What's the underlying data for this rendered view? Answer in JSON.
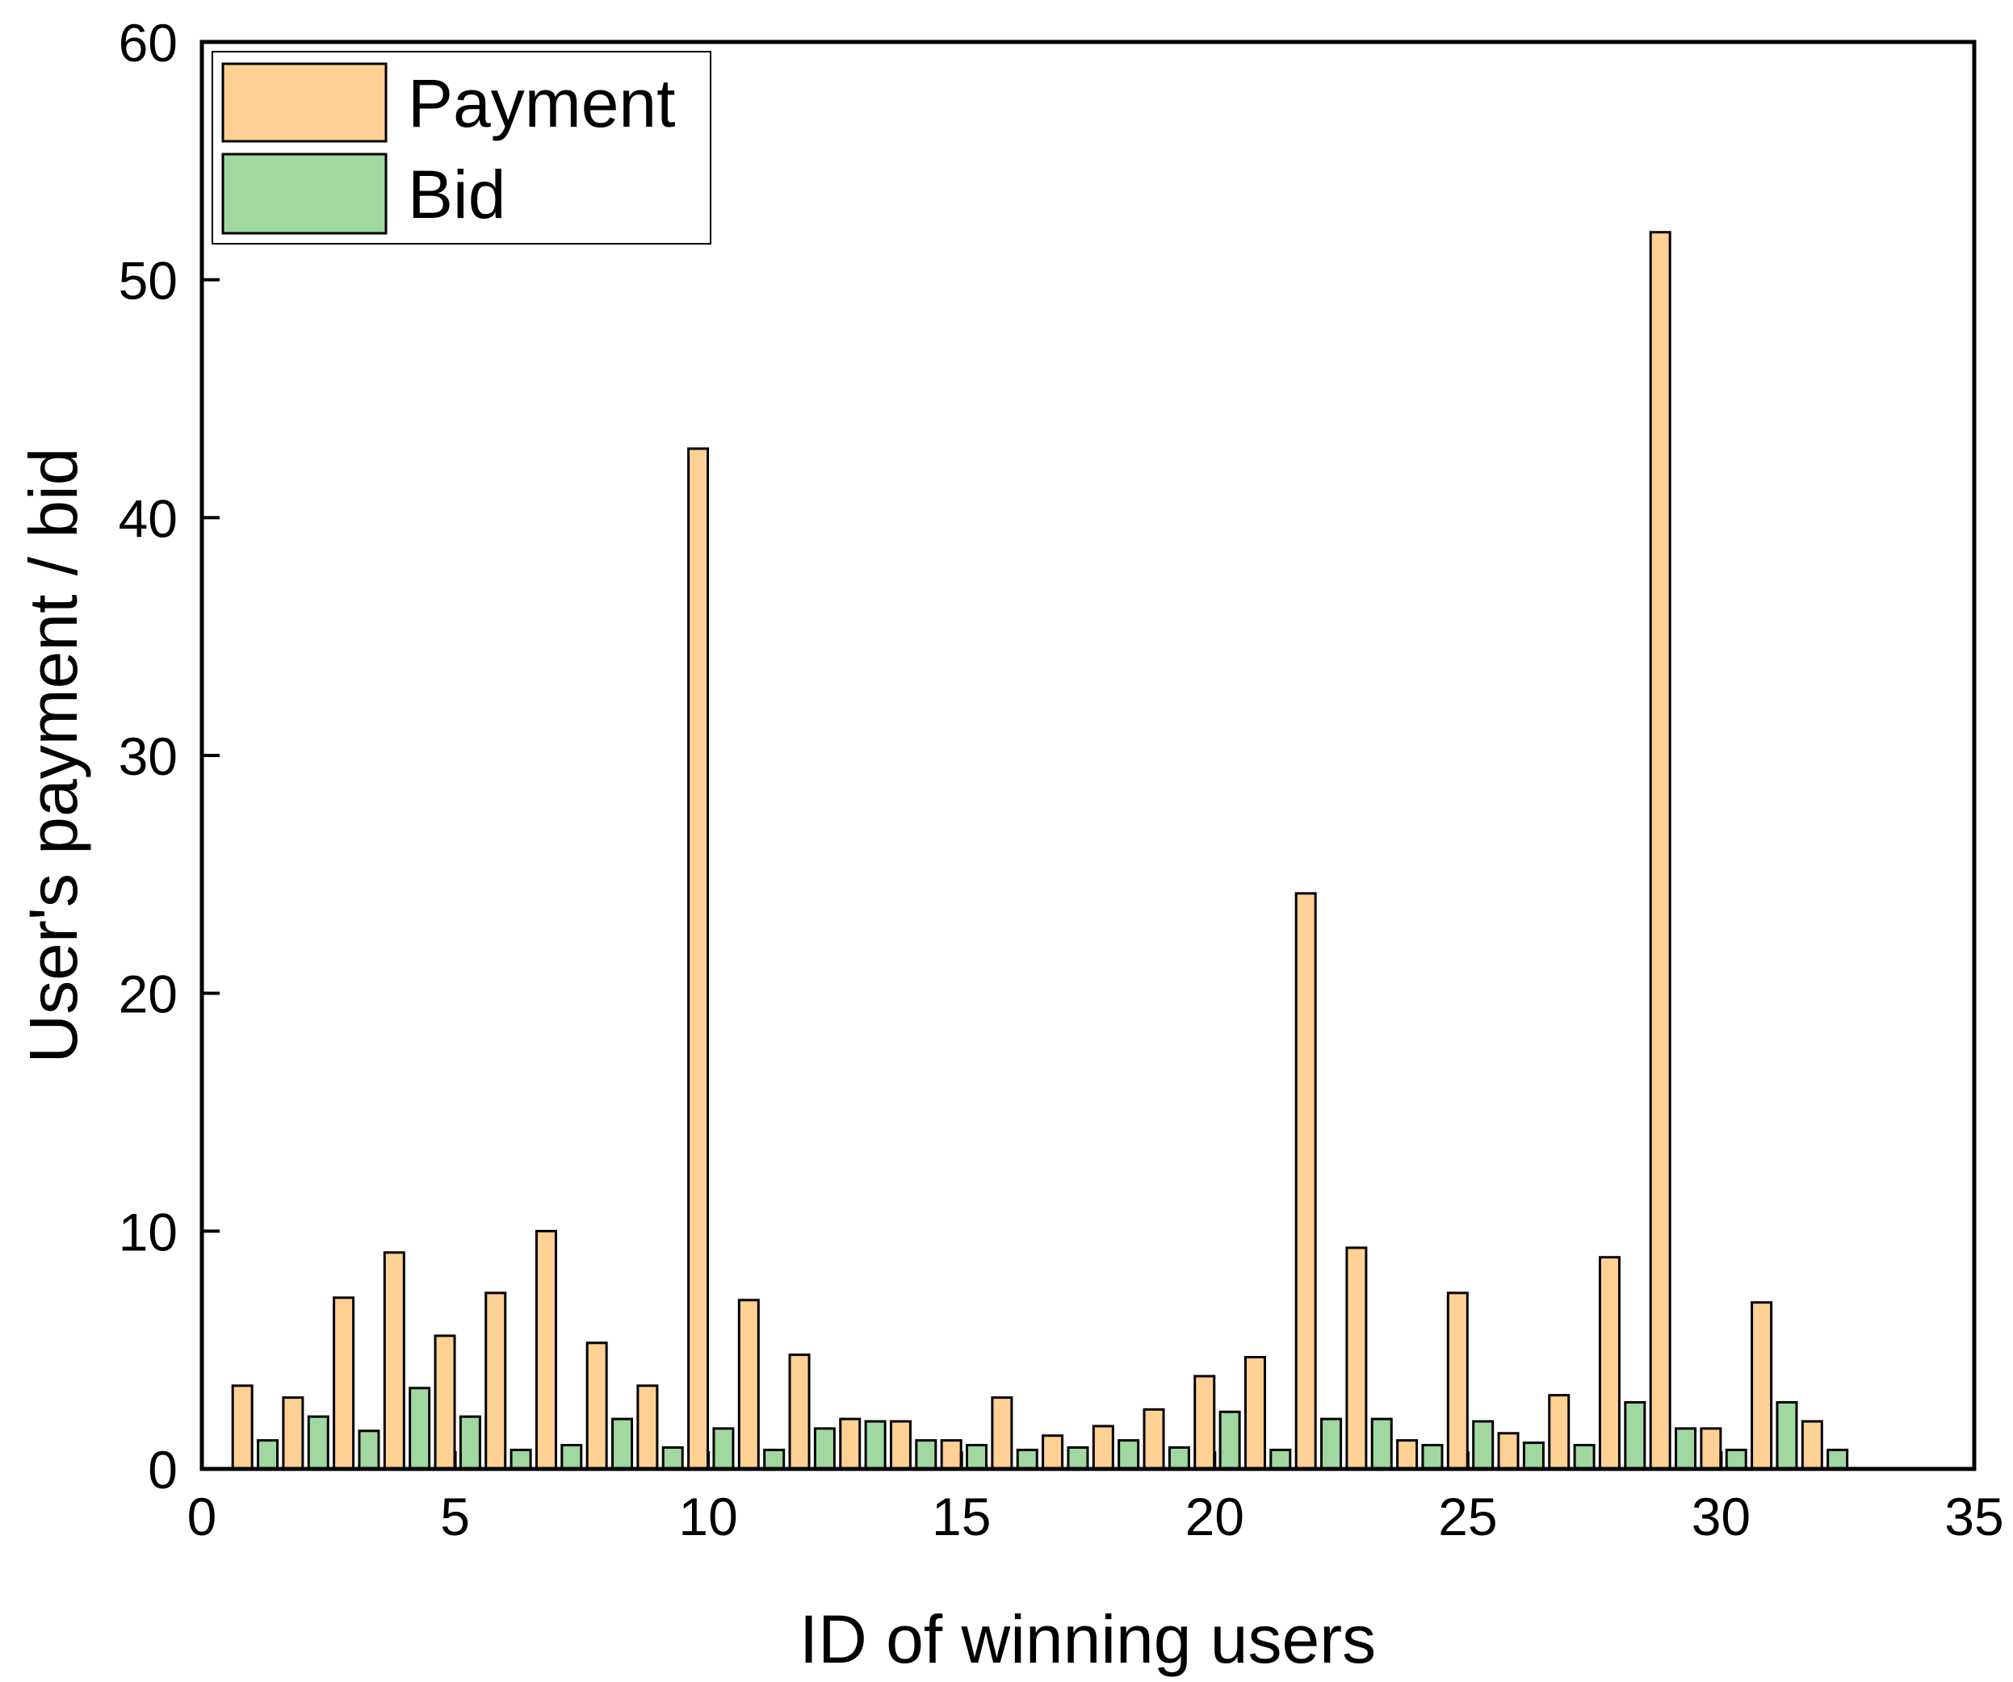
{
  "chart_data": {
    "type": "bar",
    "title": "",
    "xlabel": "ID of winning users",
    "ylabel": "User's payment / bid",
    "xlim": [
      0,
      35
    ],
    "ylim": [
      0,
      60
    ],
    "x_ticks": [
      0,
      5,
      10,
      15,
      20,
      25,
      30,
      35
    ],
    "y_ticks": [
      0,
      10,
      20,
      30,
      40,
      50,
      60
    ],
    "grid": false,
    "legend_position": "top-left",
    "categories": [
      1,
      2,
      3,
      4,
      5,
      6,
      7,
      8,
      9,
      10,
      11,
      12,
      13,
      14,
      15,
      16,
      17,
      18,
      19,
      20,
      21,
      22,
      23,
      24,
      25,
      26,
      27,
      28,
      29,
      30,
      31,
      32
    ],
    "series": [
      {
        "name": "Payment",
        "color": "#FFD194",
        "values": [
          3.5,
          3.0,
          7.2,
          9.1,
          5.6,
          7.4,
          10.0,
          5.3,
          3.5,
          42.9,
          7.1,
          4.8,
          2.1,
          2.0,
          1.2,
          3.0,
          1.4,
          1.8,
          2.5,
          3.9,
          4.7,
          24.2,
          9.3,
          1.2,
          7.4,
          1.5,
          3.1,
          8.9,
          52.0,
          1.7,
          7.0,
          2.0
        ]
      },
      {
        "name": "Bid",
        "color": "#A0D8A0",
        "values": [
          1.2,
          2.2,
          1.6,
          3.4,
          2.2,
          0.8,
          1.0,
          2.1,
          0.9,
          1.7,
          0.8,
          1.7,
          2.0,
          1.2,
          1.0,
          0.8,
          0.9,
          1.2,
          0.9,
          2.4,
          0.8,
          2.1,
          2.1,
          1.0,
          2.0,
          1.1,
          1.0,
          2.8,
          1.7,
          0.8,
          2.8,
          0.8
        ]
      }
    ]
  }
}
